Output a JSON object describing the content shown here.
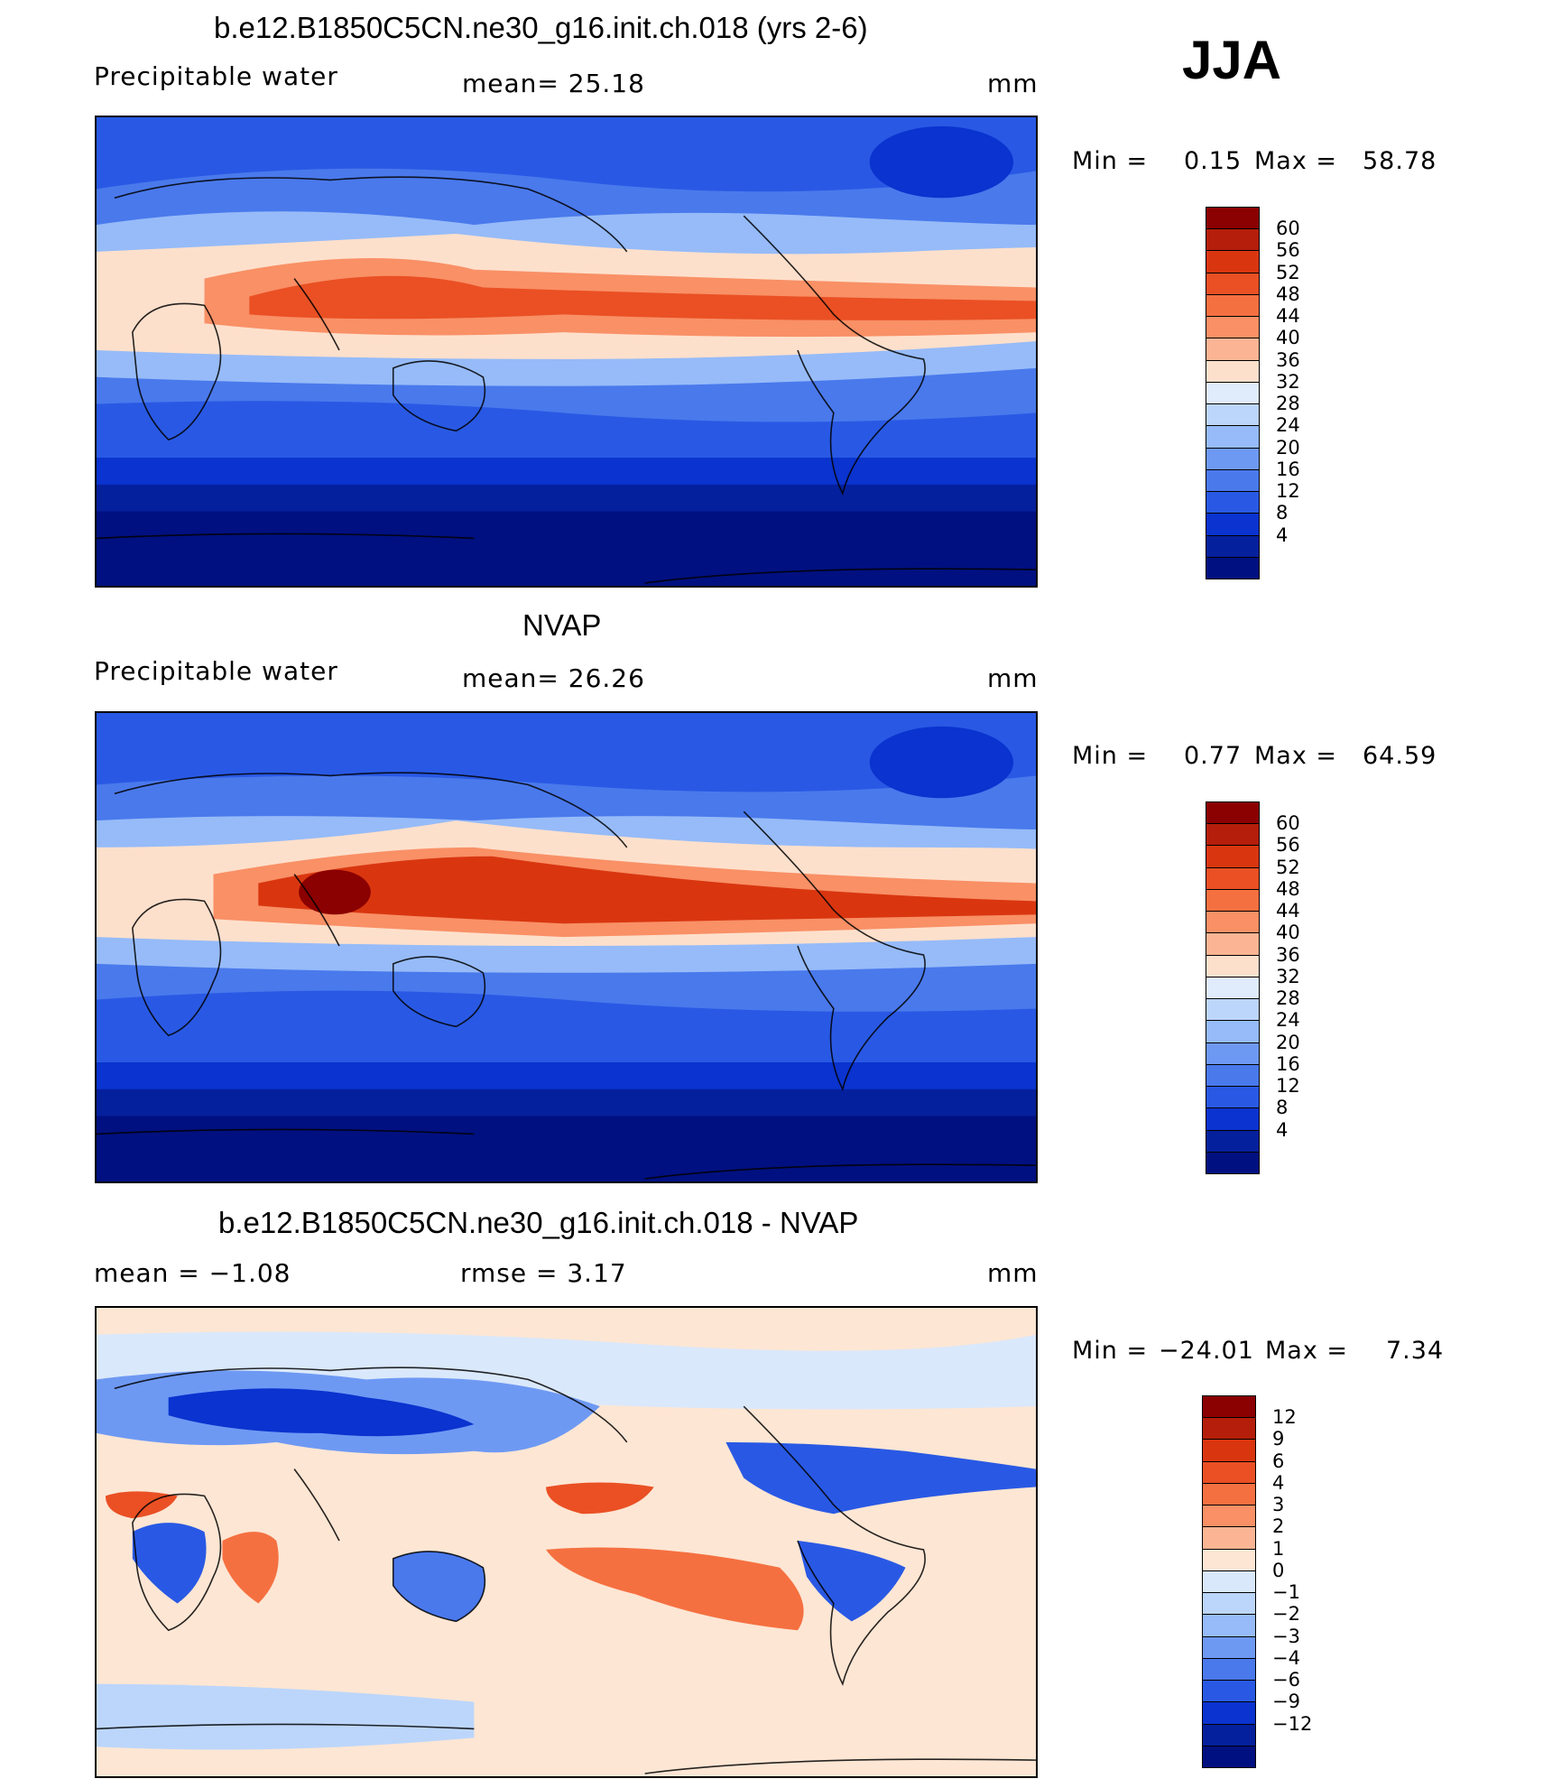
{
  "season": "JJA",
  "panels": [
    {
      "id": "model",
      "title": "b.e12.B1850C5CN.ne30_g16.init.ch.018 (yrs 2-6)",
      "left_label": "Precipitable  water",
      "center_label": "mean=   25.18",
      "units": "mm",
      "min_label": "Min  =",
      "min_value": "0.15",
      "max_label": "Max  =",
      "max_value": "58.78",
      "colorbar": {
        "ticks": [
          "60",
          "56",
          "52",
          "48",
          "44",
          "40",
          "36",
          "32",
          "28",
          "24",
          "20",
          "16",
          "12",
          "8",
          "4"
        ],
        "colors": [
          "#8b0000",
          "#b51e0a",
          "#d93610",
          "#ea5024",
          "#f57040",
          "#f99066",
          "#fbb594",
          "#fde0cc",
          "#e0ecfb",
          "#bcd6fb",
          "#96bbf8",
          "#6e99f3",
          "#4a79ec",
          "#2959e4",
          "#0a33cf",
          "#05209d",
          "#001080"
        ]
      }
    },
    {
      "id": "obs",
      "title": "NVAP",
      "left_label": "Precipitable  water",
      "center_label": "mean=   26.26",
      "units": "mm",
      "min_label": "Min  =",
      "min_value": "0.77",
      "max_label": "Max  =",
      "max_value": "64.59",
      "colorbar": {
        "ticks": [
          "60",
          "56",
          "52",
          "48",
          "44",
          "40",
          "36",
          "32",
          "28",
          "24",
          "20",
          "16",
          "12",
          "8",
          "4"
        ],
        "colors": [
          "#8b0000",
          "#b51e0a",
          "#d93610",
          "#ea5024",
          "#f57040",
          "#f99066",
          "#fbb594",
          "#fde0cc",
          "#e0ecfb",
          "#bcd6fb",
          "#96bbf8",
          "#6e99f3",
          "#4a79ec",
          "#2959e4",
          "#0a33cf",
          "#05209d",
          "#001080"
        ]
      }
    },
    {
      "id": "diff",
      "title": "b.e12.B1850C5CN.ne30_g16.init.ch.018 - NVAP",
      "left_label": "mean  =    −1.08",
      "center_label": "rmse  =     3.17",
      "units": "mm",
      "min_label": "Min  =",
      "min_value": "−24.01",
      "max_label": "Max  =",
      "max_value": "7.34",
      "colorbar": {
        "ticks": [
          "12",
          "9",
          "6",
          "4",
          "3",
          "2",
          "1",
          "0",
          "−1",
          "−2",
          "−3",
          "−4",
          "−6",
          "−9",
          "−12"
        ],
        "colors": [
          "#8b0000",
          "#b51e0a",
          "#d93610",
          "#ea5024",
          "#f57040",
          "#f99066",
          "#fbb594",
          "#fde6d4",
          "#dae8fb",
          "#bcd6fb",
          "#96bbf8",
          "#6e99f3",
          "#4a79ec",
          "#2959e4",
          "#0a33cf",
          "#05209d",
          "#001080"
        ]
      }
    }
  ]
}
